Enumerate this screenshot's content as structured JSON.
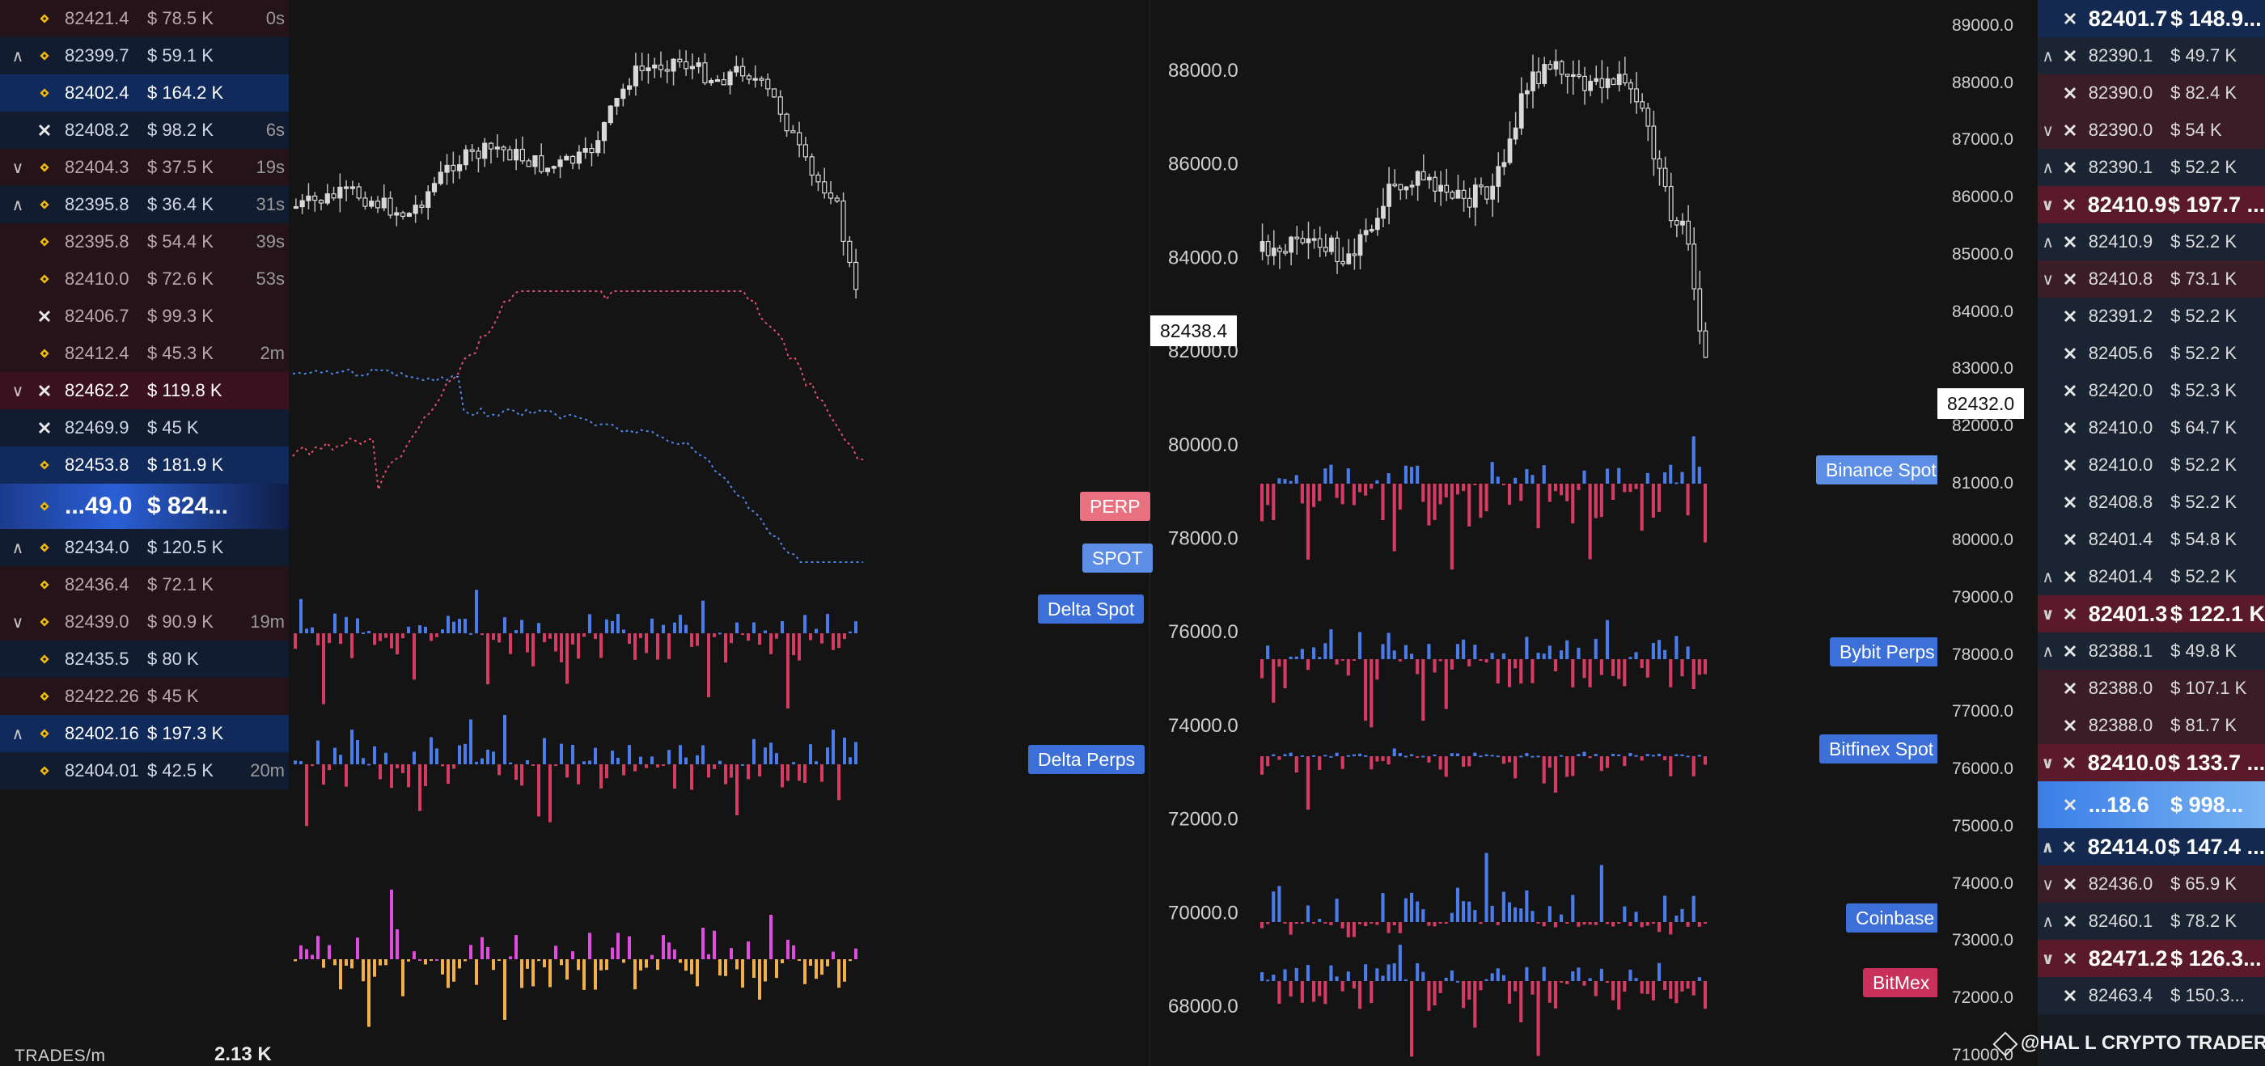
{
  "left_tape": {
    "rows": [
      {
        "chev": "",
        "exchange": "binance",
        "price": "82421.4",
        "size": "$ 78.5 K",
        "age": "0s",
        "side": "sell"
      },
      {
        "chev": "up",
        "exchange": "binance",
        "price": "82399.7",
        "size": "$ 59.1 K",
        "age": "",
        "side": "buy"
      },
      {
        "chev": "",
        "exchange": "binance",
        "price": "82402.4",
        "size": "$ 164.2 K",
        "age": "",
        "side": "buy",
        "strong": true
      },
      {
        "chev": "",
        "exchange": "bybit",
        "price": "82408.2",
        "size": "$ 98.2 K",
        "age": "6s",
        "side": "buy"
      },
      {
        "chev": "down",
        "exchange": "binance",
        "price": "82404.3",
        "size": "$ 37.5 K",
        "age": "19s",
        "side": "sell"
      },
      {
        "chev": "up",
        "exchange": "binance",
        "price": "82395.8",
        "size": "$ 36.4 K",
        "age": "31s",
        "side": "buy"
      },
      {
        "chev": "",
        "exchange": "binance",
        "price": "82395.8",
        "size": "$ 54.4 K",
        "age": "39s",
        "side": "sell"
      },
      {
        "chev": "",
        "exchange": "binance",
        "price": "82410.0",
        "size": "$ 72.6 K",
        "age": "53s",
        "side": "sell"
      },
      {
        "chev": "",
        "exchange": "bybit",
        "price": "82406.7",
        "size": "$ 99.3 K",
        "age": "",
        "side": "sell"
      },
      {
        "chev": "",
        "exchange": "binance",
        "price": "82412.4",
        "size": "$ 45.3 K",
        "age": "2m",
        "side": "sell"
      },
      {
        "chev": "down",
        "exchange": "bybit",
        "price": "82462.2",
        "size": "$ 119.8 K",
        "age": "",
        "side": "sell",
        "strong": true
      },
      {
        "chev": "",
        "exchange": "bybit",
        "price": "82469.9",
        "size": "$ 45 K",
        "age": "",
        "side": "buy"
      },
      {
        "chev": "",
        "exchange": "binance",
        "price": "82453.8",
        "size": "$ 181.9 K",
        "age": "",
        "side": "buy",
        "strong": true
      },
      {
        "chev": "",
        "exchange": "binance",
        "price": "...49.0",
        "size": "$ 824...",
        "age": "",
        "side": "buy",
        "big": true
      },
      {
        "chev": "up",
        "exchange": "binance",
        "price": "82434.0",
        "size": "$ 120.5 K",
        "age": "",
        "side": "buy"
      },
      {
        "chev": "",
        "exchange": "binance",
        "price": "82436.4",
        "size": "$ 72.1 K",
        "age": "",
        "side": "sell"
      },
      {
        "chev": "down",
        "exchange": "binance",
        "price": "82439.0",
        "size": "$ 90.9 K",
        "age": "19m",
        "side": "sell"
      },
      {
        "chev": "",
        "exchange": "binance",
        "price": "82435.5",
        "size": "$ 80 K",
        "age": "",
        "side": "buy"
      },
      {
        "chev": "",
        "exchange": "binance",
        "price": "82422.26",
        "size": "$ 45 K",
        "age": "",
        "side": "sell"
      },
      {
        "chev": "up",
        "exchange": "binance",
        "price": "82402.16",
        "size": "$ 197.3 K",
        "age": "",
        "side": "buy",
        "strong": true
      },
      {
        "chev": "",
        "exchange": "binance",
        "price": "82404.01",
        "size": "$ 42.5 K",
        "age": "20m",
        "side": "buy"
      }
    ],
    "trades_label": "TRADES/m",
    "trades_value": "2.13 K"
  },
  "labels": {
    "perp": "PERP",
    "spot": "SPOT",
    "delta_spot": "Delta Spot",
    "delta_perps": "Delta Perps",
    "binance_spot": "Binance Spot",
    "bybit_perps": "Bybit Perps",
    "bitfinex_spot": "Bitfinex Spot",
    "coinbase": "Coinbase",
    "bitmex": "BitMex"
  },
  "mid_axis": {
    "ticks": [
      "88000.0",
      "86000.0",
      "84000.0",
      "82000.0",
      "80000.0",
      "78000.0",
      "76000.0",
      "74000.0",
      "72000.0",
      "70000.0",
      "68000.0"
    ],
    "current_price": "82438.4"
  },
  "right_axis": {
    "ticks": [
      "89000.0",
      "88000.0",
      "87000.0",
      "86000.0",
      "85000.0",
      "84000.0",
      "83000.0",
      "82000.0",
      "81000.0",
      "80000.0",
      "79000.0",
      "78000.0",
      "77000.0",
      "76000.0",
      "75000.0",
      "74000.0",
      "73000.0",
      "72000.0",
      "71000.0"
    ],
    "current_price": "82432.0"
  },
  "right_tape": {
    "rows": [
      {
        "chev": "",
        "price": "82401.7",
        "size": "$ 148.9...",
        "side": "buy",
        "strong": true
      },
      {
        "chev": "up",
        "price": "82390.1",
        "size": "$ 49.7 K",
        "side": "buy"
      },
      {
        "chev": "",
        "price": "82390.0",
        "size": "$ 82.4 K",
        "side": "sell"
      },
      {
        "chev": "down",
        "price": "82390.0",
        "size": "$ 54 K",
        "side": "sell"
      },
      {
        "chev": "up",
        "price": "82390.1",
        "size": "$ 52.2 K",
        "side": "buy"
      },
      {
        "chev": "down",
        "price": "82410.9",
        "size": "$ 197.7 ...",
        "side": "sell",
        "strong": true
      },
      {
        "chev": "up",
        "price": "82410.9",
        "size": "$ 52.2 K",
        "side": "buy"
      },
      {
        "chev": "down",
        "price": "82410.8",
        "size": "$ 73.1 K",
        "side": "sell"
      },
      {
        "chev": "",
        "price": "82391.2",
        "size": "$ 52.2 K",
        "side": "buy"
      },
      {
        "chev": "",
        "price": "82405.6",
        "size": "$ 52.2 K",
        "side": "buy"
      },
      {
        "chev": "",
        "price": "82420.0",
        "size": "$ 52.3 K",
        "side": "buy"
      },
      {
        "chev": "",
        "price": "82410.0",
        "size": "$ 64.7 K",
        "side": "buy"
      },
      {
        "chev": "",
        "price": "82410.0",
        "size": "$ 52.2 K",
        "side": "buy"
      },
      {
        "chev": "",
        "price": "82408.8",
        "size": "$ 52.2 K",
        "side": "buy"
      },
      {
        "chev": "",
        "price": "82401.4",
        "size": "$ 54.8 K",
        "side": "buy"
      },
      {
        "chev": "up",
        "price": "82401.4",
        "size": "$ 52.2 K",
        "side": "buy"
      },
      {
        "chev": "down",
        "price": "82401.3",
        "size": "$ 122.1 K",
        "side": "sell",
        "strong": true
      },
      {
        "chev": "up",
        "price": "82388.1",
        "size": "$ 49.8 K",
        "side": "buy"
      },
      {
        "chev": "",
        "price": "82388.0",
        "size": "$ 107.1 K",
        "side": "sell"
      },
      {
        "chev": "",
        "price": "82388.0",
        "size": "$ 81.7 K",
        "side": "sell"
      },
      {
        "chev": "down",
        "price": "82410.0",
        "size": "$ 133.7 ...",
        "side": "sell",
        "strong": true
      },
      {
        "chev": "",
        "price": "...18.6",
        "size": "$ 998...",
        "side": "buy",
        "big": true
      },
      {
        "chev": "up",
        "price": "82414.0",
        "size": "$ 147.4 ...",
        "side": "buy",
        "strong": true
      },
      {
        "chev": "down",
        "price": "82436.0",
        "size": "$ 65.9 K",
        "side": "sell"
      },
      {
        "chev": "up",
        "price": "82460.1",
        "size": "$ 78.2 K",
        "side": "buy"
      },
      {
        "chev": "down",
        "price": "82471.2",
        "size": "$ 126.3...",
        "side": "sell",
        "strong": true
      },
      {
        "chev": "",
        "price": "82463.4",
        "size": "$ 150.3...",
        "side": "buy"
      }
    ]
  },
  "watermark": "@HAL  L CRYPTO TRADER",
  "colors": {
    "buy": "#4a7dea",
    "sell": "#d63b64",
    "perp_line": "#e0506e",
    "spot_line": "#4f86e8",
    "magenta": "#e04be0",
    "orange": "#f2b04a",
    "tag_perp": "#e8707f",
    "tag_spot": "#5d8ee6",
    "tag_blue": "#3c6fd8",
    "tag_bitmex": "#c9305a",
    "binance": "#f0b90b"
  }
}
